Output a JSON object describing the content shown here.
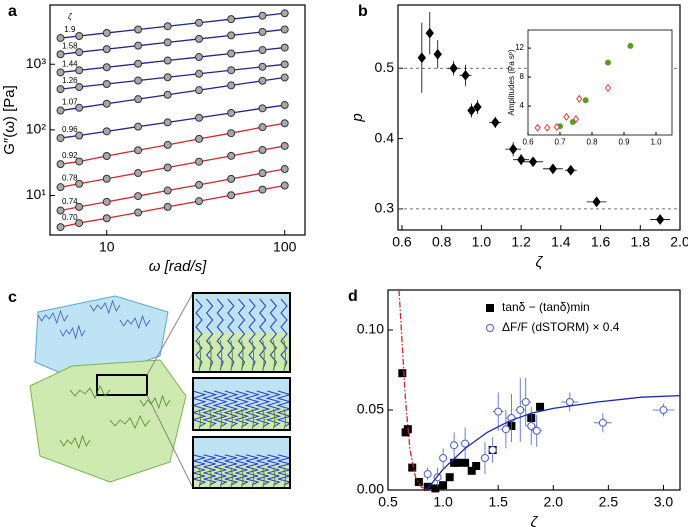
{
  "chart_data": [
    {
      "panel": "a",
      "type": "scatter",
      "xlabel": "ω [rad/s]",
      "ylabel": "G″(ω) [Pa]",
      "xlog": true,
      "ylog": true,
      "xlim": [
        4.8,
        130
      ],
      "ylim": [
        2.5,
        8000
      ],
      "xticks": [
        10,
        100
      ],
      "yticks": [
        {
          "value": 10,
          "label": "10¹"
        },
        {
          "value": 100,
          "label": "10²"
        },
        {
          "value": 1000,
          "label": "10³"
        }
      ],
      "series_label_title": "ζ",
      "series": [
        {
          "name": "1.9",
          "color": "#1c2590",
          "marker": "circle",
          "line": true,
          "x": [
            5.5,
            7,
            10,
            15,
            22,
            33,
            50,
            75,
            100
          ],
          "values": [
            2508,
            2697,
            3000,
            3387,
            3801,
            4293,
            4863,
            5490,
            5985
          ]
        },
        {
          "name": "1.58",
          "color": "#1c2590",
          "marker": "circle",
          "line": true,
          "x": [
            5.5,
            7,
            10,
            15,
            22,
            33,
            50,
            75,
            100
          ],
          "values": [
            1421,
            1528,
            1700,
            1919,
            2154,
            2433,
            2756,
            3111,
            3392
          ]
        },
        {
          "name": "1.44",
          "color": "#1c2590",
          "marker": "circle",
          "line": true,
          "x": [
            5.5,
            7,
            10,
            15,
            22,
            33,
            50,
            75,
            100
          ],
          "values": [
            752,
            809,
            900,
            1016,
            1140,
            1288,
            1459,
            1647,
            1796
          ]
        },
        {
          "name": "1.26",
          "color": "#1c2590",
          "marker": "circle",
          "line": true,
          "x": [
            5.5,
            7,
            10,
            15,
            22,
            33,
            50,
            75,
            100
          ],
          "values": [
            418,
            450,
            500,
            565,
            634,
            716,
            811,
            915,
            998
          ]
        },
        {
          "name": "1.07",
          "color": "#1c2590",
          "marker": "circle",
          "line": true,
          "x": [
            5.5,
            7,
            10,
            15,
            22,
            33,
            50,
            75,
            100
          ],
          "values": [
            197,
            217,
            250,
            294,
            343,
            403,
            476,
            560,
            628
          ]
        },
        {
          "name": "0.96",
          "color": "#1c2590",
          "marker": "circle",
          "line": true,
          "x": [
            5.5,
            7,
            10,
            15,
            22,
            33,
            50,
            75,
            100
          ],
          "values": [
            75,
            82,
            95,
            112,
            130,
            153,
            181,
            213,
            239
          ]
        },
        {
          "name": "0.92",
          "color": "#d0282c",
          "marker": "circle",
          "line": true,
          "x": [
            5.5,
            7,
            10,
            15,
            22,
            33,
            50,
            75,
            100
          ],
          "values": [
            30,
            33,
            40,
            49,
            59,
            73,
            89,
            110,
            126
          ]
        },
        {
          "name": "0.78",
          "color": "#d0282c",
          "marker": "circle",
          "line": true,
          "x": [
            5.5,
            7,
            10,
            15,
            22,
            33,
            50,
            75,
            100
          ],
          "values": [
            13.4,
            15.1,
            18,
            22,
            26.7,
            32.7,
            40.2,
            49.3,
            56.9
          ]
        },
        {
          "name": "0.74",
          "color": "#d0282c",
          "marker": "circle",
          "line": true,
          "x": [
            5.5,
            7,
            10,
            15,
            22,
            33,
            50,
            75,
            100
          ],
          "values": [
            5.9,
            6.7,
            8,
            9.8,
            11.9,
            14.5,
            17.9,
            21.9,
            25.3
          ]
        },
        {
          "name": "0.70",
          "color": "#d0282c",
          "marker": "circle",
          "line": true,
          "x": [
            5.5,
            7,
            10,
            15,
            22,
            33,
            50,
            75,
            100
          ],
          "values": [
            3.3,
            3.8,
            4.5,
            5.5,
            6.7,
            8.2,
            10.1,
            12.3,
            14.2
          ]
        }
      ]
    },
    {
      "panel": "b",
      "type": "scatter",
      "xlabel": "ζ",
      "ylabel": "p",
      "xlim": [
        0.58,
        2.0
      ],
      "ylim": [
        0.27,
        0.59
      ],
      "xticks": [
        0.6,
        0.8,
        {
          "value": 1,
          "label": "1.0"
        },
        1.2,
        1.4,
        1.6,
        1.8,
        {
          "value": 2,
          "label": "2.0"
        }
      ],
      "yticks": [
        0.3,
        0.4,
        0.5
      ],
      "hlines": [
        0.5,
        0.3
      ],
      "series": [
        {
          "color": "#000000",
          "marker": "diamond",
          "filled": true,
          "x": [
            0.7,
            0.74,
            0.78,
            0.86,
            0.92,
            0.95,
            0.98,
            1.07,
            1.16,
            1.2,
            1.26,
            1.36,
            1.45,
            1.58,
            1.9
          ],
          "values": [
            0.515,
            0.55,
            0.52,
            0.5,
            0.49,
            0.44,
            0.445,
            0.423,
            0.385,
            0.37,
            0.367,
            0.357,
            0.355,
            0.31,
            0.285
          ],
          "yerr": [
            0.05,
            0.03,
            0.02,
            0.01,
            0.015,
            0.01,
            0.01,
            0.008,
            0.01,
            0.008,
            0.006,
            0.005,
            0.005,
            0.005,
            0.006
          ],
          "xerr": [
            0.01,
            0.02,
            0.02,
            0.03,
            0.03,
            0.02,
            0.02,
            0.03,
            0.04,
            0.04,
            0.05,
            0.05,
            0.03,
            0.05,
            0.05
          ]
        }
      ]
    },
    {
      "type": "scatter",
      "ylabel": "Amplitudes (Pa sᵖ)",
      "xlim": [
        0.6,
        1.05
      ],
      "ylim": [
        0,
        14.5
      ],
      "xticks": [
        0.6,
        0.7,
        0.8,
        0.9,
        {
          "value": 1,
          "label": "1.0"
        }
      ],
      "yticks": [
        4,
        8,
        12
      ],
      "series": [
        {
          "color": "#5a9e1e",
          "marker": "circle",
          "filled": true,
          "x": [
            0.7,
            0.74,
            0.78,
            0.85,
            0.92
          ],
          "values": [
            1.2,
            1.8,
            4.8,
            10,
            12.3
          ]
        },
        {
          "color": "#e04040",
          "marker": "diamond",
          "filled": false,
          "x": [
            0.63,
            0.66,
            0.69,
            0.72,
            0.75,
            0.76,
            0.85
          ],
          "values": [
            1,
            1,
            1.1,
            2.5,
            2.2,
            5,
            6.5
          ]
        }
      ]
    },
    {
      "panel": "d",
      "type": "scatter",
      "xlabel": "ζ",
      "xlim": [
        0.5,
        3.15
      ],
      "ylim": [
        0,
        0.125
      ],
      "xticks": [
        0.5,
        {
          "value": 1,
          "label": "1.0"
        },
        1.5,
        {
          "value": 2,
          "label": "2.0"
        },
        2.5,
        {
          "value": 3,
          "label": "3.0"
        }
      ],
      "yticks": [
        {
          "value": 0,
          "label": "0.00"
        },
        0.05,
        {
          "value": 0.1,
          "label": "0.10"
        }
      ],
      "legend": "upper right",
      "series": [
        {
          "name": "tanδ − (tanδ)min",
          "color": "#000000",
          "marker": "square",
          "filled": true,
          "x": [
            0.63,
            0.66,
            0.68,
            0.72,
            0.78,
            0.86,
            0.93,
            1.0,
            1.06,
            1.1,
            1.13,
            1.2,
            1.26,
            1.3,
            1.45,
            1.62,
            1.8,
            1.88
          ],
          "values": [
            0.073,
            0.036,
            0.038,
            0.014,
            0.005,
            0.002,
            0.001,
            0.003,
            0.008,
            0.017,
            0.017,
            0.017,
            0.012,
            0.015,
            0.025,
            0.04,
            0.045,
            0.052
          ]
        },
        {
          "name": "ΔF/F (dSTORM) × 0.4",
          "color": "#4a5ec8",
          "marker": "circle",
          "filled": false,
          "x": [
            0.86,
            0.95,
            1.0,
            1.1,
            1.2,
            1.38,
            1.45,
            1.5,
            1.57,
            1.62,
            1.7,
            1.75,
            1.8,
            1.85,
            2.15,
            2.45,
            3.0
          ],
          "values": [
            0.01,
            0.008,
            0.02,
            0.028,
            0.029,
            0.02,
            0.025,
            0.049,
            0.038,
            0.045,
            0.05,
            0.055,
            0.04,
            0.037,
            0.055,
            0.042,
            0.05
          ],
          "yerr": [
            0.004,
            0.006,
            0.006,
            0.008,
            0.01,
            0.01,
            0.008,
            0.012,
            0.012,
            0.015,
            0.02,
            0.015,
            0.012,
            0.01,
            0.006,
            0.006,
            0.004
          ],
          "xerr": [
            0.03,
            0.03,
            0.03,
            0.04,
            0.04,
            0.04,
            0.04,
            0.05,
            0.05,
            0.05,
            0.05,
            0.05,
            0.05,
            0.05,
            0.08,
            0.08,
            0.1
          ]
        },
        {
          "color": "#1a28b0",
          "marker": "none",
          "line": true,
          "x": [
            0.85,
            1.0,
            1.2,
            1.4,
            1.6,
            1.8,
            2.0,
            2.4,
            2.8,
            3.15
          ],
          "values": [
            0,
            0.013,
            0.026,
            0.036,
            0.043,
            0.048,
            0.051,
            0.055,
            0.058,
            0.059
          ]
        },
        {
          "color": "#d0282c",
          "marker": "none",
          "line": true,
          "dash": "dashdot",
          "x": [
            0.6,
            0.63,
            0.66,
            0.7,
            0.75,
            0.8,
            0.85,
            0.9
          ],
          "values": [
            0.125,
            0.09,
            0.055,
            0.025,
            0.008,
            0.002,
            0,
            0
          ]
        }
      ]
    }
  ],
  "diagram": {
    "panel": "c"
  }
}
